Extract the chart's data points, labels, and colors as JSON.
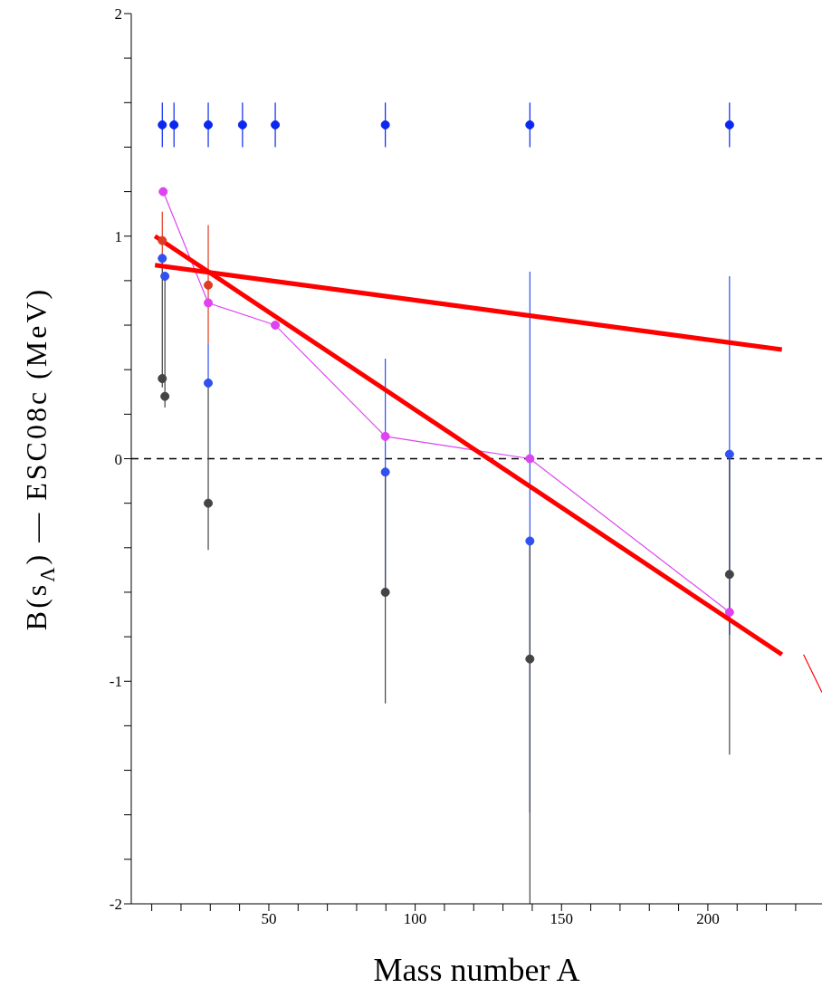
{
  "chart_data": {
    "type": "scatter",
    "xlabel": "Mass number A",
    "ylabel": "B(s$_{Λ}$) — ESC08c (MeV)",
    "xlim": [
      3,
      239
    ],
    "ylim": [
      -2,
      2
    ],
    "xticks": [
      {
        "value": 10,
        "label": null
      },
      {
        "value": 20,
        "label": null
      },
      {
        "value": 30,
        "label": null
      },
      {
        "value": 40,
        "label": null
      },
      50,
      {
        "value": 60,
        "label": null
      },
      {
        "value": 70,
        "label": null
      },
      {
        "value": 80,
        "label": null
      },
      {
        "value": 90,
        "label": null
      },
      100,
      {
        "value": 110,
        "label": null
      },
      {
        "value": 120,
        "label": null
      },
      {
        "value": 130,
        "label": null
      },
      {
        "value": 140,
        "label": null
      },
      150,
      {
        "value": 160,
        "label": null
      },
      {
        "value": 170,
        "label": null
      },
      {
        "value": 180,
        "label": null
      },
      {
        "value": 190,
        "label": null
      },
      200,
      {
        "value": 210,
        "label": null
      },
      {
        "value": 220,
        "label": null
      },
      {
        "value": 230,
        "label": null
      }
    ],
    "yticks": [
      -2,
      {
        "value": -1.8,
        "label": null
      },
      {
        "value": -1.6,
        "label": null
      },
      {
        "value": -1.4,
        "label": null
      },
      {
        "value": -1.2,
        "label": null
      },
      -1,
      {
        "value": -0.8,
        "label": null
      },
      {
        "value": -0.6,
        "label": null
      },
      {
        "value": -0.4,
        "label": null
      },
      {
        "value": -0.2,
        "label": null
      },
      0,
      {
        "value": 0.2,
        "label": null
      },
      {
        "value": 0.4,
        "label": null
      },
      {
        "value": 0.6,
        "label": null
      },
      {
        "value": 0.8,
        "label": null
      },
      1,
      {
        "value": 1.2,
        "label": null
      },
      {
        "value": 1.4,
        "label": null
      },
      {
        "value": 1.6,
        "label": null
      },
      {
        "value": 1.8,
        "label": null
      },
      2
    ],
    "grid": false,
    "legend": false,
    "marker": "circle",
    "ref_lines": [
      {
        "axis": "y",
        "value": 0,
        "color": "#000000",
        "line_style": "dashed"
      }
    ],
    "series": [
      {
        "color": "#0a28f0",
        "x": [
          13.6,
          17.6,
          29.3,
          41,
          52.2,
          89.8,
          139.2,
          207.4
        ],
        "values": [
          1.5,
          1.5,
          1.5,
          1.5,
          1.5,
          1.5,
          1.5,
          1.5
        ],
        "errors": [
          0.1,
          0.1,
          0.1,
          0.1,
          0.1,
          0.1,
          0.1,
          0.1
        ]
      },
      {
        "color": "#3050f0",
        "x": [
          13.6,
          14.5,
          29.3,
          89.8,
          139.2,
          207.4
        ],
        "values": [
          0.9,
          0.82,
          0.34,
          -0.06,
          -0.37,
          0.02
        ],
        "errors": [
          null,
          null,
          [
            0.34,
            0.52
          ],
          [
            -0.6,
            0.45
          ],
          [
            -1.59,
            0.84
          ],
          [
            -0.79,
            0.82
          ]
        ]
      },
      {
        "color": "#444444",
        "x": [
          13.6,
          14.5,
          29.3,
          89.8,
          139.2,
          207.4
        ],
        "values": [
          0.36,
          0.28,
          -0.2,
          -0.6,
          -0.9,
          -0.52
        ],
        "errors": [
          [
            0.32,
            0.9
          ],
          [
            0.23,
            0.82
          ],
          [
            -0.41,
            0.34
          ],
          [
            -1.1,
            -0.06
          ],
          [
            -2,
            -0.37
          ],
          [
            -1.33,
            0.02
          ]
        ]
      },
      {
        "type": "line",
        "color": "#dd44f0",
        "x": [
          13.9,
          29.3,
          52.2,
          89.8,
          139.2,
          207.4
        ],
        "values": [
          1.2,
          0.7,
          0.6,
          0.1,
          0,
          -0.69
        ]
      },
      {
        "type": "line",
        "color": "#ff0000",
        "marker": "none",
        "x": [
          11.1,
          225.3
        ],
        "values": [
          1.0,
          -0.88
        ]
      },
      {
        "type": "line",
        "color": "#ff0000",
        "marker": "none",
        "x": [
          11.1,
          225.3
        ],
        "values": [
          0.87,
          0.49
        ]
      },
      {
        "type": "line",
        "color": "#ff0000",
        "marker": "none",
        "line_style": "solid",
        "x": [
          232.7,
          239
        ],
        "values": [
          -0.88,
          -1.05
        ]
      },
      {
        "color": "#e03a22",
        "x": [
          13.6,
          29.3
        ],
        "values": [
          0.98,
          0.78
        ],
        "errors": [
          [
            0.85,
            1.11
          ],
          [
            0.52,
            1.05
          ]
        ]
      }
    ]
  }
}
